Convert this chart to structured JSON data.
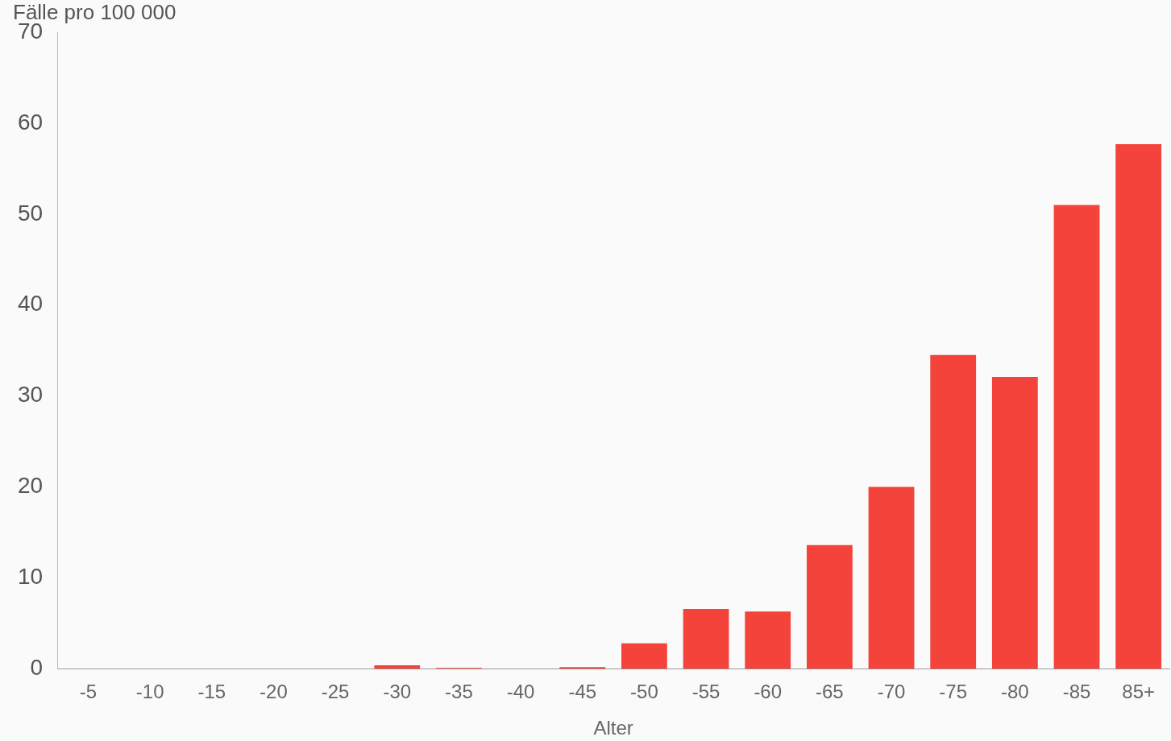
{
  "chart_data": {
    "type": "bar",
    "ylabel": "Fälle pro 100 000",
    "xlabel": "Alter",
    "categories": [
      "-5",
      "-10",
      "-15",
      "-20",
      "-25",
      "-30",
      "-35",
      "-40",
      "-45",
      "-50",
      "-55",
      "-60",
      "-65",
      "-70",
      "-75",
      "-80",
      "-85",
      "85+"
    ],
    "values": [
      0,
      0,
      0,
      0,
      0,
      0.4,
      0.1,
      0,
      0.2,
      2.8,
      6.6,
      6.3,
      13.6,
      20.0,
      34.5,
      32.1,
      51.0,
      57.7
    ],
    "color": "#f4433a",
    "ylim": [
      0,
      70
    ],
    "yticks": [
      0,
      10,
      20,
      30,
      40,
      50,
      60,
      70
    ],
    "grid": false,
    "legend": false
  }
}
